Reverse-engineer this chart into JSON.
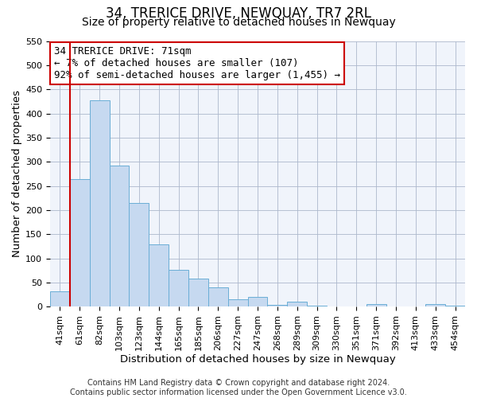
{
  "title": "34, TRERICE DRIVE, NEWQUAY, TR7 2RL",
  "subtitle": "Size of property relative to detached houses in Newquay",
  "xlabel": "Distribution of detached houses by size in Newquay",
  "ylabel": "Number of detached properties",
  "bar_labels": [
    "41sqm",
    "61sqm",
    "82sqm",
    "103sqm",
    "123sqm",
    "144sqm",
    "165sqm",
    "185sqm",
    "206sqm",
    "227sqm",
    "247sqm",
    "268sqm",
    "289sqm",
    "309sqm",
    "330sqm",
    "351sqm",
    "371sqm",
    "392sqm",
    "413sqm",
    "433sqm",
    "454sqm"
  ],
  "bar_heights": [
    32,
    265,
    428,
    293,
    215,
    130,
    76,
    59,
    40,
    15,
    21,
    4,
    10,
    2,
    1,
    1,
    5,
    1,
    1,
    5,
    3
  ],
  "bar_color": "#c6d9f0",
  "bar_edge_color": "#6aaed6",
  "vline_x": 0.5,
  "vline_color": "#cc0000",
  "ylim": [
    0,
    550
  ],
  "yticks": [
    0,
    50,
    100,
    150,
    200,
    250,
    300,
    350,
    400,
    450,
    500,
    550
  ],
  "annotation_title": "34 TRERICE DRIVE: 71sqm",
  "annotation_line1": "← 7% of detached houses are smaller (107)",
  "annotation_line2": "92% of semi-detached houses are larger (1,455) →",
  "annotation_box_color": "#ffffff",
  "annotation_box_edge": "#cc0000",
  "footer_line1": "Contains HM Land Registry data © Crown copyright and database right 2024.",
  "footer_line2": "Contains public sector information licensed under the Open Government Licence v3.0.",
  "title_fontsize": 12,
  "subtitle_fontsize": 10,
  "axis_label_fontsize": 9.5,
  "tick_fontsize": 8,
  "annotation_fontsize": 9,
  "footer_fontsize": 7
}
